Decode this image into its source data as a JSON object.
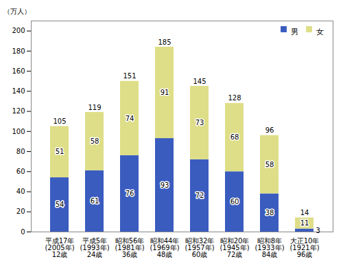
{
  "chart_data": {
    "type": "bar",
    "stacked": true,
    "ylabel": "（万人）",
    "categories": [
      "平成17年\n(2005年)\n12歳",
      "平成5年\n(1993年)\n24歳",
      "昭和56年\n(1981年)\n36歳",
      "昭和44年\n(1969年)\n48歳",
      "昭和32年\n(1957年)\n60歳",
      "昭和20年\n(1945年)\n72歳",
      "昭和8年\n(1933年)\n84歳",
      "大正10年\n(1921年)\n96歳"
    ],
    "series": [
      {
        "name": "男",
        "color": "#3a5cbf",
        "values": [
          54,
          61,
          76,
          93,
          72,
          60,
          38,
          3
        ]
      },
      {
        "name": "女",
        "color": "#dede88",
        "values": [
          51,
          58,
          74,
          91,
          73,
          68,
          58,
          11
        ]
      }
    ],
    "totals": [
      105,
      119,
      151,
      185,
      145,
      128,
      96,
      14
    ],
    "ylim": [
      0,
      210
    ],
    "yticks": [
      0,
      20,
      40,
      60,
      80,
      100,
      120,
      140,
      160,
      180,
      200
    ],
    "data_labels": true,
    "legend": "upper right",
    "grid": false
  }
}
